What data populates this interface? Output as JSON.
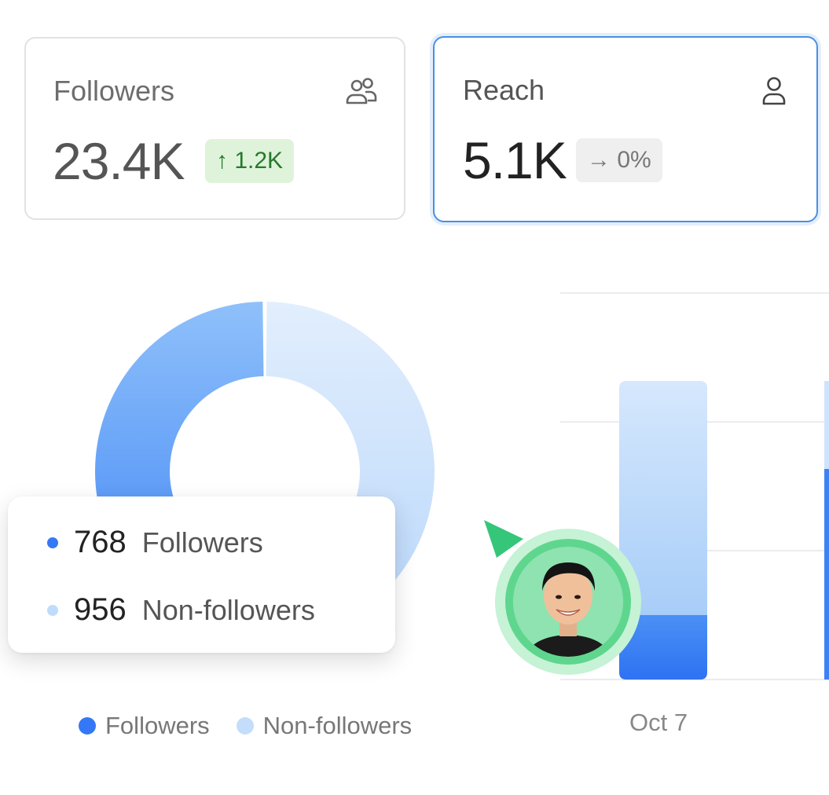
{
  "cards": {
    "followers": {
      "title": "Followers",
      "value": "23.4K",
      "badge": "↑ 1.2K",
      "icon": "users-icon",
      "badge_color": "#267a2c"
    },
    "reach": {
      "title": "Reach",
      "value": "5.1K",
      "badge": "→ 0%",
      "icon": "user-icon",
      "accent": "#4a90e2"
    }
  },
  "tooltip": {
    "rows": [
      {
        "value": "768",
        "label": "Followers",
        "color": "#3478f6"
      },
      {
        "value": "956",
        "label": "Non-followers",
        "color": "#bfdcfb"
      }
    ]
  },
  "legend": [
    {
      "label": "Followers",
      "color": "#3478f6"
    },
    {
      "label": "Non-followers",
      "color": "#c3ddfb"
    }
  ],
  "chart_data": [
    {
      "type": "pie",
      "variant": "donut",
      "categories": [
        "Followers",
        "Non-followers"
      ],
      "values": [
        768,
        956
      ],
      "colors": [
        "#3478f6",
        "#c3ddfb"
      ]
    },
    {
      "type": "bar",
      "stacked": true,
      "categories": [
        "Oct 7"
      ],
      "series": [
        {
          "name": "Followers",
          "values": [
            768
          ]
        },
        {
          "name": "Non-followers",
          "values": [
            956
          ]
        }
      ]
    }
  ]
}
